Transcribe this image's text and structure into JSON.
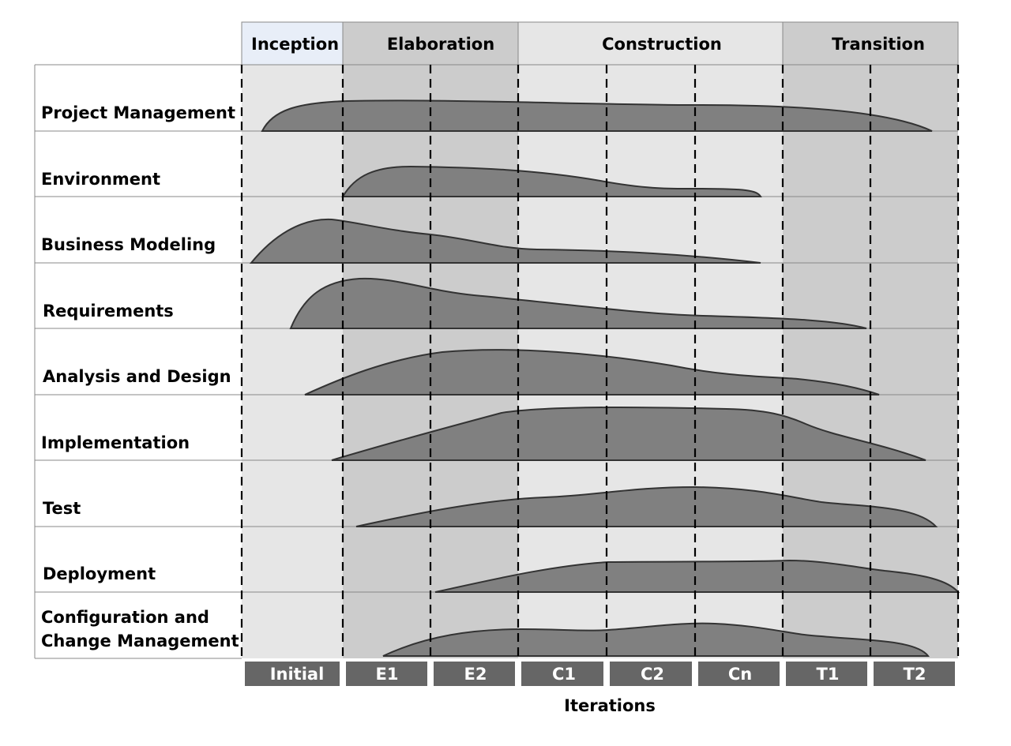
{
  "phases": [
    {
      "name": "Inception",
      "color": "#e8eef8"
    },
    {
      "name": "Elaboration",
      "color": "#cccccc"
    },
    {
      "name": "Construction",
      "color": "#e6e6e6"
    },
    {
      "name": "Transition",
      "color": "#cccccc"
    }
  ],
  "disciplines": [
    {
      "name": "Project Management"
    },
    {
      "name": "Environment"
    },
    {
      "name": "Business Modeling"
    },
    {
      "name": "Requirements"
    },
    {
      "name": "Analysis and Design"
    },
    {
      "name": "Implementation"
    },
    {
      "name": "Test"
    },
    {
      "name": "Deployment"
    },
    {
      "name": "Configuration and",
      "name_line2": "Change Management"
    }
  ],
  "iterations": [
    "Initial",
    "E1",
    "E2",
    "C1",
    "C2",
    "Cn",
    "T1",
    "T2"
  ],
  "axis_label": "Iterations",
  "colors": {
    "body_light": "#e6e6e6",
    "body_dark": "#cccccc",
    "hump": "#808080",
    "iteration_box": "#666666"
  }
}
